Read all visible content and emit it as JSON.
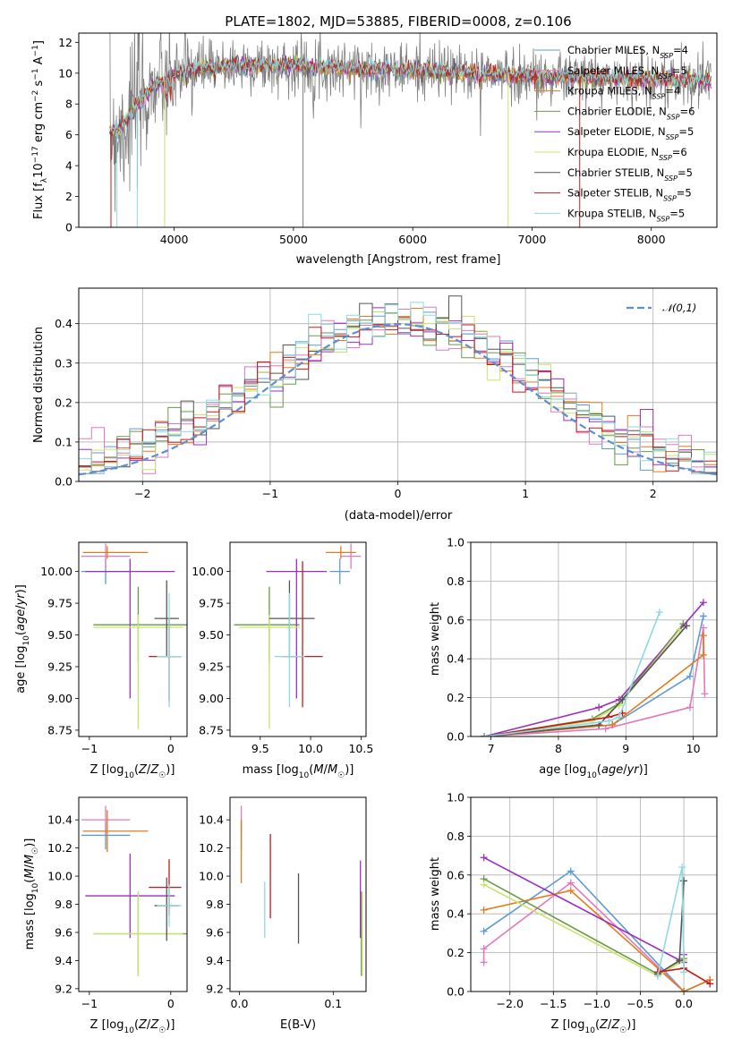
{
  "title": "PLATE=1802, MJD=53885, FIBERID=0008, z=0.106",
  "colors": {
    "Chabrier MILES": "#5b9bd5",
    "Salpeter MILES": "#e377c2",
    "Kroupa MILES": "#e37b1b",
    "Chabrier ELODIE": "#6a9a4a",
    "Salpeter ELODIE": "#9b2fbf",
    "Kroupa ELODIE": "#c8e46a",
    "Chabrier STELIB": "#555555",
    "Salpeter STELIB": "#c81818",
    "Kroupa STELIB": "#8fd9e0",
    "data": "#7f7f7f",
    "gauss": "#5b8fd6"
  },
  "chart_data": [
    {
      "type": "line",
      "panel": "spectrum",
      "title": "PLATE=1802, MJD=53885, FIBERID=0008, z=0.106",
      "xlabel": "wavelength [Angstrom, rest frame]",
      "ylabel": "Flux [f_λ10^-17 erg cm^-2 s^-1 A^-1]",
      "xlim": [
        3200,
        8550
      ],
      "ylim": [
        0,
        12.6
      ],
      "xticks": [
        "4000",
        "5000",
        "6000",
        "7000",
        "8000"
      ],
      "yticks": [
        "0",
        "2",
        "4",
        "6",
        "8",
        "10",
        "12"
      ],
      "legend_position": "upper right",
      "legend": [
        "Chabrier MILES, N_SSP=4",
        "Salpeter MILES, N_SSP=5",
        "Kroupa MILES, N_SSP=4",
        "Chabrier ELODIE, N_SSP=6",
        "Salpeter ELODIE, N_SSP=5",
        "Kroupa ELODIE, N_SSP=6",
        "Chabrier STELIB, N_SSP=5",
        "Salpeter STELIB, N_SSP=5",
        "Kroupa STELIB, N_SSP=5"
      ],
      "continuum": {
        "x": [
          3450,
          3550,
          3700,
          3800,
          3950,
          4100,
          4300,
          4500,
          5000,
          5500,
          6000,
          6500,
          7000,
          7500,
          8000,
          8500
        ],
        "y": [
          6.2,
          6.4,
          8.0,
          9.0,
          9.7,
          10.2,
          10.4,
          10.5,
          10.5,
          10.3,
          10.2,
          10.0,
          9.8,
          9.7,
          9.6,
          9.5
        ]
      }
    },
    {
      "type": "histogram",
      "panel": "residuals",
      "xlabel": "(data-model)/error",
      "ylabel": "Normed distribution",
      "xlim": [
        -2.5,
        2.5
      ],
      "ylim": [
        0,
        0.49
      ],
      "xticks": [
        "−2",
        "−1",
        "0",
        "1",
        "2"
      ],
      "yticks": [
        "0.0",
        "0.1",
        "0.2",
        "0.3",
        "0.4"
      ],
      "legend": [
        "𝒩(0,1)"
      ],
      "legend_position": "upper right",
      "grid": true,
      "bin_width": 0.1
    },
    {
      "type": "errorbar",
      "panel": "Z-age",
      "xlabel": "Z [log10(Z/Z☉)]",
      "ylabel": "age  [log10(age/yr)]",
      "xlim": [
        -1.13,
        0.2
      ],
      "ylim": [
        8.7,
        10.23
      ],
      "xticks": [
        "−1",
        "0"
      ],
      "yticks": [
        "8.75",
        "9.00",
        "9.25",
        "9.50",
        "9.75",
        "10.00"
      ],
      "points": [
        {
          "name": "Chabrier MILES",
          "x": -0.8,
          "xerr": [
            0.3,
            0.3
          ],
          "y": 10.0,
          "yerr": [
            0.1,
            0.1
          ]
        },
        {
          "name": "Salpeter MILES",
          "x": -0.8,
          "xerr": [
            0.3,
            0.3
          ],
          "y": 10.12,
          "yerr": [
            0.1,
            0.1
          ]
        },
        {
          "name": "Kroupa MILES",
          "x": -0.78,
          "xerr": [
            0.3,
            0.5
          ],
          "y": 10.15,
          "yerr": [
            0.05,
            0.05
          ]
        },
        {
          "name": "Chabrier ELODIE",
          "x": -0.4,
          "xerr": [
            0.55,
            0.75
          ],
          "y": 9.58,
          "yerr": [
            0.3,
            0.3
          ]
        },
        {
          "name": "Salpeter ELODIE",
          "x": -0.5,
          "xerr": [
            0.55,
            0.55
          ],
          "y": 10.0,
          "yerr": [
            1.0,
            0.1
          ]
        },
        {
          "name": "Kroupa ELODIE",
          "x": -0.4,
          "xerr": [
            0.55,
            0.55
          ],
          "y": 9.56,
          "yerr": [
            0.8,
            0.1
          ]
        },
        {
          "name": "Chabrier STELIB",
          "x": -0.05,
          "xerr": [
            0.15,
            0.15
          ],
          "y": 9.63,
          "yerr": [
            0.3,
            0.3
          ]
        },
        {
          "name": "Salpeter STELIB",
          "x": -0.02,
          "xerr": [
            0.25,
            0.15
          ],
          "y": 9.33,
          "yerr": [
            0.35,
            0.3
          ]
        },
        {
          "name": "Kroupa STELIB",
          "x": -0.02,
          "xerr": [
            0.15,
            0.15
          ],
          "y": 9.33,
          "yerr": [
            0.4,
            0.5
          ]
        }
      ]
    },
    {
      "type": "errorbar",
      "panel": "mass-age",
      "xlabel": "mass [log10(M/M☉)]",
      "ylabel": "",
      "xlim": [
        9.2,
        10.55
      ],
      "ylim": [
        8.7,
        10.23
      ],
      "xticks": [
        "9.5",
        "10.0",
        "10.5"
      ],
      "yticks": [
        "8.75",
        "9.00",
        "9.25",
        "9.50",
        "9.75",
        "10.00"
      ],
      "points": [
        {
          "name": "Chabrier MILES",
          "x": 10.29,
          "xerr": [
            0.1,
            0.1
          ],
          "y": 10.0,
          "yerr": [
            0.1,
            0.1
          ]
        },
        {
          "name": "Salpeter MILES",
          "x": 10.4,
          "xerr": [
            0.1,
            0.1
          ],
          "y": 10.12,
          "yerr": [
            0.1,
            0.1
          ]
        },
        {
          "name": "Kroupa MILES",
          "x": 10.3,
          "xerr": [
            0.15,
            0.15
          ],
          "y": 10.15,
          "yerr": [
            0.05,
            0.05
          ]
        },
        {
          "name": "Chabrier ELODIE",
          "x": 9.59,
          "xerr": [
            0.35,
            0.3
          ],
          "y": 9.58,
          "yerr": [
            0.3,
            0.3
          ]
        },
        {
          "name": "Salpeter ELODIE",
          "x": 9.86,
          "xerr": [
            0.3,
            0.3
          ],
          "y": 10.0,
          "yerr": [
            1.0,
            0.1
          ]
        },
        {
          "name": "Kroupa ELODIE",
          "x": 9.59,
          "xerr": [
            0.3,
            0.3
          ],
          "y": 9.56,
          "yerr": [
            0.8,
            0.1
          ]
        },
        {
          "name": "Chabrier STELIB",
          "x": 9.79,
          "xerr": [
            0.2,
            0.25
          ],
          "y": 9.63,
          "yerr": [
            0.3,
            0.3
          ]
        },
        {
          "name": "Salpeter STELIB",
          "x": 9.92,
          "xerr": [
            0.2,
            0.2
          ],
          "y": 9.33,
          "yerr": [
            0.4,
            0.75
          ]
        },
        {
          "name": "Kroupa STELIB",
          "x": 9.79,
          "xerr": [
            0.15,
            0.15
          ],
          "y": 9.33,
          "yerr": [
            0.4,
            0.5
          ]
        }
      ]
    },
    {
      "type": "line",
      "panel": "age-weight",
      "xlabel": "age  [log10(age/yr)]",
      "ylabel": "mass weight",
      "xlim": [
        6.7,
        10.35
      ],
      "ylim": [
        0,
        1.0
      ],
      "xticks": [
        "7",
        "8",
        "9",
        "10"
      ],
      "yticks": [
        "0.0",
        "0.2",
        "0.4",
        "0.6",
        "0.8",
        "1.0"
      ],
      "grid": true,
      "series": [
        {
          "name": "Chabrier MILES",
          "x": [
            6.9,
            8.8,
            9.95,
            10.15
          ],
          "y": [
            0.0,
            0.06,
            0.31,
            0.62
          ]
        },
        {
          "name": "Salpeter MILES",
          "x": [
            6.9,
            8.7,
            9.95,
            10.15,
            10.17
          ],
          "y": [
            0.0,
            0.04,
            0.15,
            0.56,
            0.22
          ]
        },
        {
          "name": "Kroupa MILES",
          "x": [
            6.9,
            8.8,
            10.15,
            10.15
          ],
          "y": [
            0.0,
            0.06,
            0.42,
            0.52
          ]
        },
        {
          "name": "Chabrier ELODIE",
          "x": [
            6.9,
            8.5,
            8.9,
            9.85
          ],
          "y": [
            0.0,
            0.09,
            0.17,
            0.58
          ]
        },
        {
          "name": "Salpeter ELODIE",
          "x": [
            6.9,
            8.6,
            8.9,
            10.15
          ],
          "y": [
            0.0,
            0.15,
            0.19,
            0.69
          ]
        },
        {
          "name": "Kroupa ELODIE",
          "x": [
            6.9,
            8.5,
            8.9,
            9.8
          ],
          "y": [
            0.0,
            0.08,
            0.16,
            0.55
          ]
        },
        {
          "name": "Chabrier STELIB",
          "x": [
            6.9,
            8.6,
            8.95,
            9.9
          ],
          "y": [
            0.0,
            0.06,
            0.19,
            0.57
          ]
        },
        {
          "name": "Salpeter STELIB",
          "x": [
            6.9,
            8.75,
            8.95
          ],
          "y": [
            0.0,
            0.1,
            0.12
          ]
        },
        {
          "name": "Kroupa STELIB",
          "x": [
            6.9,
            8.75,
            8.9,
            9.5
          ],
          "y": [
            0.0,
            0.08,
            0.1,
            0.64
          ]
        }
      ]
    },
    {
      "type": "errorbar",
      "panel": "Z-mass",
      "xlabel": "Z [log10(Z/Z☉)]",
      "ylabel": "mass [log10(M/M☉)]",
      "xlim": [
        -1.13,
        0.2
      ],
      "ylim": [
        9.18,
        10.56
      ],
      "xticks": [
        "−1",
        "0"
      ],
      "yticks": [
        "9.2",
        "9.4",
        "9.6",
        "9.8",
        "10.0",
        "10.2",
        "10.4"
      ],
      "points": [
        {
          "name": "Chabrier MILES",
          "x": -0.8,
          "xerr": [
            0.3,
            0.3
          ],
          "y": 10.29,
          "yerr": [
            0.1,
            0.1
          ]
        },
        {
          "name": "Salpeter MILES",
          "x": -0.8,
          "xerr": [
            0.3,
            0.3
          ],
          "y": 10.4,
          "yerr": [
            0.1,
            0.1
          ]
        },
        {
          "name": "Kroupa MILES",
          "x": -0.78,
          "xerr": [
            0.3,
            0.5
          ],
          "y": 10.32,
          "yerr": [
            0.15,
            0.15
          ]
        },
        {
          "name": "Chabrier ELODIE",
          "x": -0.4,
          "xerr": [
            0.55,
            0.75
          ],
          "y": 9.59,
          "yerr": [
            0.3,
            0.3
          ]
        },
        {
          "name": "Salpeter ELODIE",
          "x": -0.5,
          "xerr": [
            0.55,
            0.55
          ],
          "y": 9.86,
          "yerr": [
            0.3,
            0.3
          ]
        },
        {
          "name": "Kroupa ELODIE",
          "x": -0.4,
          "xerr": [
            0.55,
            0.55
          ],
          "y": 9.59,
          "yerr": [
            0.3,
            0.3
          ]
        },
        {
          "name": "Chabrier STELIB",
          "x": -0.05,
          "xerr": [
            0.15,
            0.15
          ],
          "y": 9.79,
          "yerr": [
            0.25,
            0.2
          ]
        },
        {
          "name": "Salpeter STELIB",
          "x": -0.02,
          "xerr": [
            0.25,
            0.15
          ],
          "y": 9.92,
          "yerr": [
            0.2,
            0.2
          ]
        },
        {
          "name": "Kroupa STELIB",
          "x": -0.02,
          "xerr": [
            0.15,
            0.15
          ],
          "y": 9.79,
          "yerr": [
            0.15,
            0.15
          ]
        }
      ]
    },
    {
      "type": "errorbar",
      "panel": "EBV-mass",
      "xlabel": "E(B-V)",
      "ylabel": "",
      "xlim": [
        -0.01,
        0.135
      ],
      "ylim": [
        9.18,
        10.56
      ],
      "xticks": [
        "0.0",
        "0.1"
      ],
      "yticks": [
        "9.2",
        "9.4",
        "9.6",
        "9.8",
        "10.0",
        "10.2",
        "10.4"
      ],
      "points": [
        {
          "name": "Chabrier MILES",
          "x": 0.002,
          "y": 10.29,
          "yerr": [
            0.1,
            0.1
          ]
        },
        {
          "name": "Salpeter MILES",
          "x": 0.002,
          "y": 10.4,
          "yerr": [
            0.1,
            0.1
          ]
        },
        {
          "name": "Kroupa MILES",
          "x": 0.002,
          "y": 10.2,
          "yerr": [
            0.25,
            0.2
          ]
        },
        {
          "name": "Chabrier ELODIE",
          "x": 0.13,
          "y": 9.59,
          "yerr": [
            0.3,
            0.3
          ]
        },
        {
          "name": "Salpeter ELODIE",
          "x": 0.129,
          "y": 9.86,
          "yerr": [
            0.3,
            0.25
          ]
        },
        {
          "name": "Kroupa ELODIE",
          "x": 0.131,
          "y": 9.59,
          "yerr": [
            0.3,
            0.3
          ]
        },
        {
          "name": "Chabrier STELIB",
          "x": 0.063,
          "y": 9.77,
          "yerr": [
            0.25,
            0.25
          ]
        },
        {
          "name": "Salpeter STELIB",
          "x": 0.033,
          "y": 10.0,
          "yerr": [
            0.3,
            0.3
          ]
        },
        {
          "name": "Kroupa STELIB",
          "x": 0.027,
          "y": 9.76,
          "yerr": [
            0.2,
            0.2
          ]
        }
      ]
    },
    {
      "type": "line",
      "panel": "Z-weight",
      "xlabel": "Z [log10(Z/Z☉)]",
      "ylabel": "mass weight",
      "xlim": [
        -2.45,
        0.38
      ],
      "ylim": [
        0,
        1.0
      ],
      "xticks": [
        "−2.0",
        "−1.5",
        "−1.0",
        "−0.5",
        "0.0"
      ],
      "yticks": [
        "0.0",
        "0.2",
        "0.4",
        "0.6",
        "0.8",
        "1.0"
      ],
      "grid": true,
      "series": [
        {
          "name": "Chabrier MILES",
          "x": [
            -2.3,
            -1.3,
            0.0,
            0.3
          ],
          "y": [
            0.31,
            0.62,
            0.0,
            0.06
          ]
        },
        {
          "name": "Salpeter MILES",
          "x": [
            -2.3,
            -2.3,
            -1.3,
            0.0
          ],
          "y": [
            0.15,
            0.22,
            0.56,
            0.0
          ]
        },
        {
          "name": "Kroupa MILES",
          "x": [
            -2.3,
            -1.3,
            0.0,
            0.3
          ],
          "y": [
            0.42,
            0.52,
            0.0,
            0.06
          ]
        },
        {
          "name": "Chabrier ELODIE",
          "x": [
            -2.3,
            -0.3,
            0.0
          ],
          "y": [
            0.58,
            0.09,
            0.17
          ]
        },
        {
          "name": "Salpeter ELODIE",
          "x": [
            -2.3,
            0.0,
            0.0
          ],
          "y": [
            0.69,
            0.15,
            0.19
          ]
        },
        {
          "name": "Kroupa ELODIE",
          "x": [
            -2.3,
            -0.3,
            0.0
          ],
          "y": [
            0.55,
            0.08,
            0.16
          ]
        },
        {
          "name": "Chabrier STELIB",
          "x": [
            -0.3,
            -0.05,
            0.0
          ],
          "y": [
            0.09,
            0.16,
            0.57
          ]
        },
        {
          "name": "Salpeter STELIB",
          "x": [
            -0.3,
            0.0,
            0.3
          ],
          "y": [
            0.1,
            0.12,
            0.04
          ]
        },
        {
          "name": "Kroupa STELIB",
          "x": [
            -0.3,
            -0.02,
            0.0
          ],
          "y": [
            0.08,
            0.64,
            0.1
          ]
        }
      ]
    }
  ]
}
